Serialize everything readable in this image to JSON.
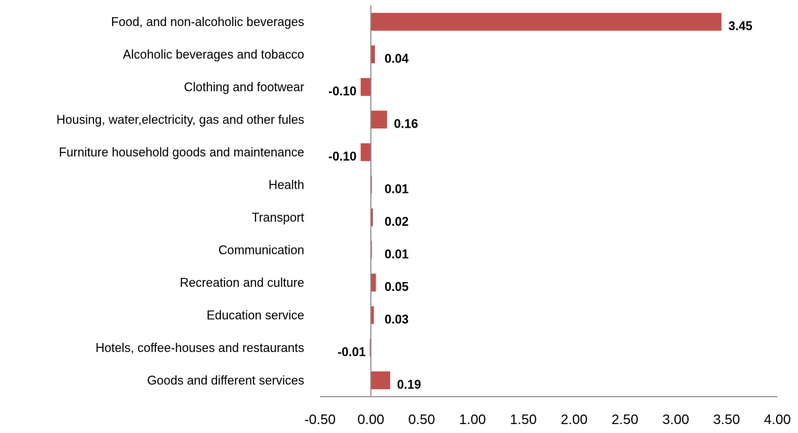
{
  "chart_data": {
    "type": "bar",
    "orientation": "horizontal",
    "title": "",
    "xlabel": "",
    "ylabel": "",
    "categories": [
      "Food, and non-alcoholic beverages",
      "Alcoholic beverages and tobacco",
      "Clothing and footwear",
      "Housing, water,electricity, gas and other fules",
      "Furniture  household goods and maintenance",
      "Health",
      "Transport",
      "Communication",
      "Recreation  and culture",
      "Education service",
      "Hotels, coffee-houses and restaurants",
      "Goods and different services"
    ],
    "values": [
      3.45,
      0.04,
      -0.1,
      0.16,
      -0.1,
      0.01,
      0.02,
      0.01,
      0.05,
      0.03,
      -0.01,
      0.19
    ],
    "value_labels": [
      "3.45",
      "0.04",
      "-0.10",
      "0.16",
      "-0.10",
      "0.01",
      "0.02",
      "0.01",
      "0.05",
      "0.03",
      "-0.01",
      "0.19"
    ],
    "xlim": [
      -0.5,
      4.0
    ],
    "x_ticks": [
      "-0.50",
      "0.00",
      "0.50",
      "1.00",
      "1.50",
      "2.00",
      "2.50",
      "3.00",
      "3.50",
      "4.00"
    ],
    "bar_color": "#c0504d",
    "axis_color": "#868686",
    "grid": false,
    "legend": "none"
  }
}
